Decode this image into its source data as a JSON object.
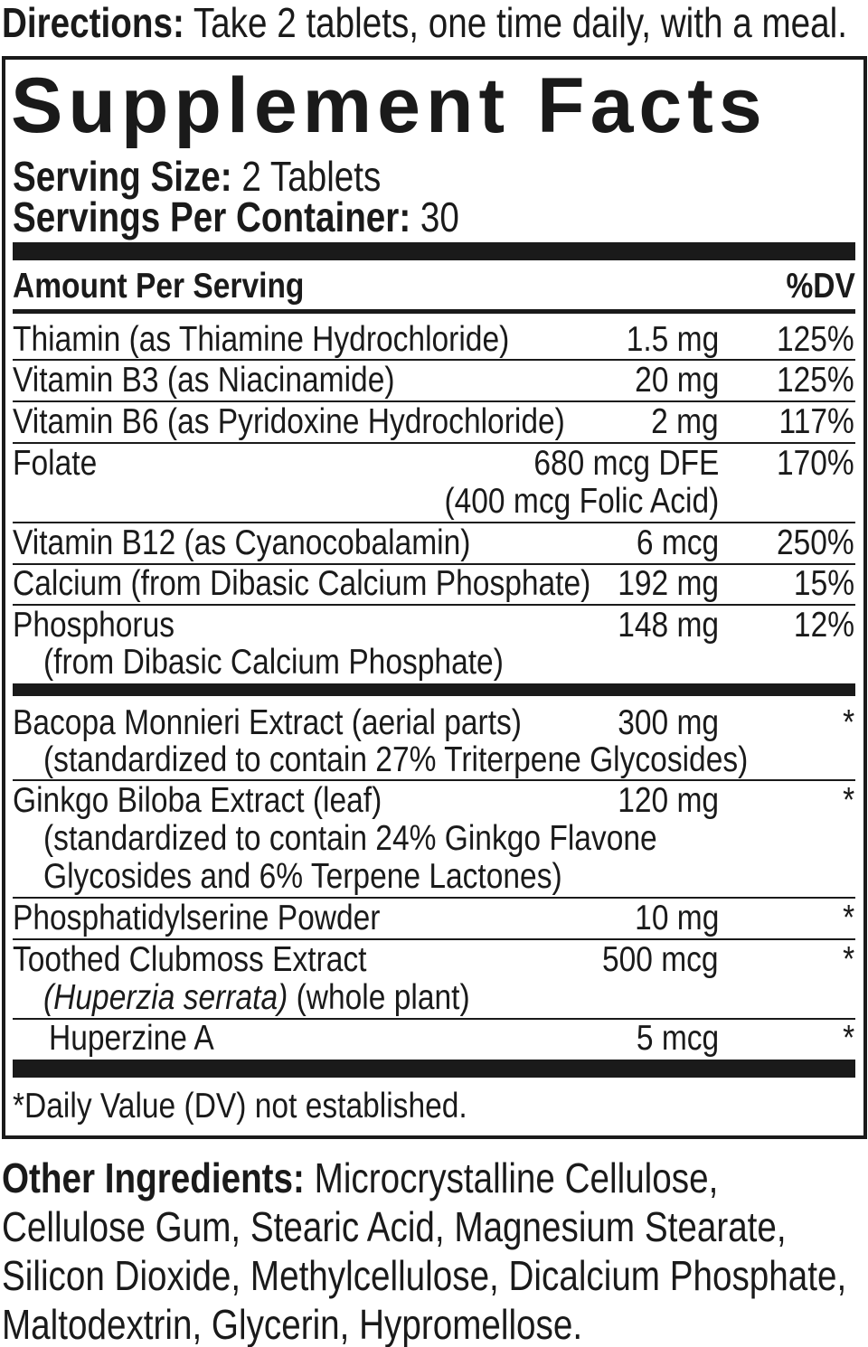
{
  "directions": {
    "label": "Directions:",
    "text": "Take 2 tablets, one time daily, with a meal."
  },
  "panel": {
    "title": "Supplement Facts",
    "serving_size_label": "Serving Size:",
    "serving_size": "2 Tablets",
    "servings_label": "Servings Per Container:",
    "servings": "30",
    "amount_header": "Amount Per Serving",
    "dv_header": "%DV",
    "rows": [
      {
        "name": "Thiamin (as Thiamine Hydrochloride)",
        "amount": "1.5 mg",
        "dv": "125%"
      },
      {
        "name": "Vitamin B3 (as Niacinamide)",
        "amount": "20 mg",
        "dv": "125%"
      },
      {
        "name": "Vitamin B6 (as Pyridoxine Hydrochloride)",
        "amount": "2 mg",
        "dv": "117%"
      },
      {
        "name": "Folate",
        "amount": "680 mcg DFE",
        "amount_sub": "(400 mcg Folic Acid)",
        "dv": "170%"
      },
      {
        "name": "Vitamin B12 (as Cyanocobalamin)",
        "amount": "6 mcg",
        "dv": "250%"
      },
      {
        "name": "Calcium (from Dibasic Calcium Phosphate)",
        "amount": "192 mg",
        "dv": "15%"
      },
      {
        "name": "Phosphorus",
        "sub": "(from Dibasic Calcium Phosphate)",
        "amount": "148 mg",
        "dv": "12%"
      }
    ],
    "botanicals": [
      {
        "name": "Bacopa Monnieri Extract (aerial parts)",
        "sub": "(standardized to contain 27% Triterpene Glycosides)",
        "amount": "300 mg",
        "dv": "*"
      },
      {
        "name": "Ginkgo Biloba Extract (leaf)",
        "sub": "(standardized to contain 24% Ginkgo Flavone",
        "sub2": "Glycosides and 6% Terpene Lactones)",
        "amount": "120 mg",
        "dv": "*"
      },
      {
        "name": "Phosphatidylserine Powder",
        "amount": "10 mg",
        "dv": "*"
      },
      {
        "name": "Toothed Clubmoss Extract",
        "sub_italic": "(Huperzia serrata)",
        "sub": "(whole plant)",
        "amount": "500 mcg",
        "dv": "*"
      },
      {
        "name": "Huperzine A",
        "amount": "5 mcg",
        "dv": "*"
      }
    ],
    "footnote": "*Daily Value (DV) not established."
  },
  "other_ingredients": {
    "label": "Other Ingredients:",
    "lines": [
      "Microcrystalline Cellulose,",
      "Cellulose Gum, Stearic Acid, Magnesium Stearate,",
      "Silicon Dioxide, Methylcellulose, Dicalcium Phosphate,",
      "Maltodextrin, Glycerin, Hypromellose."
    ]
  }
}
